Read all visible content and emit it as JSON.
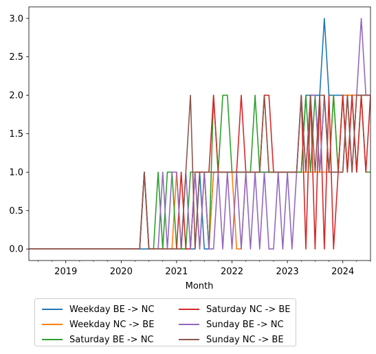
{
  "chart_data": {
    "type": "line",
    "title": "",
    "xlabel": "Month",
    "ylabel": "",
    "xlim": [
      "2018-05",
      "2024-07"
    ],
    "ylim": [
      -0.15,
      3.15
    ],
    "grid": false,
    "legend_position": "below",
    "x_tick_labels": [
      "2019",
      "2020",
      "2021",
      "2022",
      "2023",
      "2024"
    ],
    "y_tick_labels": [
      "0.0",
      "0.5",
      "1.0",
      "1.5",
      "2.0",
      "2.5",
      "3.0"
    ],
    "series": [
      {
        "name": "Weekday BE -> NC",
        "color": "#1f77b4",
        "points": [
          [
            "2018-05",
            0
          ],
          [
            "2021-05",
            0
          ],
          [
            "2021-06",
            1
          ],
          [
            "2021-07",
            0
          ],
          [
            "2021-08",
            0
          ],
          [
            "2021-09",
            1
          ],
          [
            "2022-01",
            1
          ],
          [
            "2023-04",
            1
          ],
          [
            "2023-05",
            2
          ],
          [
            "2023-08",
            2
          ],
          [
            "2023-09",
            3
          ],
          [
            "2023-10",
            2
          ],
          [
            "2024-07",
            2
          ]
        ]
      },
      {
        "name": "Weekday NC -> BE",
        "color": "#ff7f0e",
        "points": [
          [
            "2018-05",
            0
          ],
          [
            "2020-05",
            0
          ],
          [
            "2020-06",
            1
          ],
          [
            "2020-07",
            0
          ],
          [
            "2020-12",
            0
          ],
          [
            "2021-01",
            1
          ],
          [
            "2021-02",
            0
          ],
          [
            "2021-04",
            0
          ],
          [
            "2021-05",
            1
          ],
          [
            "2021-06",
            0
          ],
          [
            "2021-07",
            1
          ],
          [
            "2021-08",
            0
          ],
          [
            "2021-09",
            1
          ],
          [
            "2022-01",
            1
          ],
          [
            "2022-02",
            0
          ],
          [
            "2022-03",
            0
          ],
          [
            "2022-04",
            1
          ],
          [
            "2022-07",
            1
          ],
          [
            "2022-08",
            2
          ],
          [
            "2022-09",
            1
          ],
          [
            "2023-10",
            1
          ],
          [
            "2023-11",
            2
          ],
          [
            "2023-12",
            1
          ],
          [
            "2024-01",
            2
          ],
          [
            "2024-07",
            2
          ]
        ]
      },
      {
        "name": "Saturday BE -> NC",
        "color": "#2ca02c",
        "points": [
          [
            "2018-05",
            0
          ],
          [
            "2020-05",
            0
          ],
          [
            "2020-06",
            1
          ],
          [
            "2020-07",
            0
          ],
          [
            "2020-08",
            0
          ],
          [
            "2020-09",
            1
          ],
          [
            "2020-10",
            0
          ],
          [
            "2020-11",
            1
          ],
          [
            "2020-12",
            1
          ],
          [
            "2021-01",
            0
          ],
          [
            "2021-03",
            0
          ],
          [
            "2021-04",
            1
          ],
          [
            "2021-07",
            1
          ],
          [
            "2021-08",
            0
          ],
          [
            "2021-09",
            2
          ],
          [
            "2021-10",
            1
          ],
          [
            "2021-11",
            2
          ],
          [
            "2021-12",
            2
          ],
          [
            "2022-01",
            1
          ],
          [
            "2022-05",
            1
          ],
          [
            "2022-06",
            2
          ],
          [
            "2022-07",
            1
          ],
          [
            "2023-04",
            1
          ],
          [
            "2023-05",
            2
          ],
          [
            "2023-06",
            1
          ],
          [
            "2023-07",
            2
          ],
          [
            "2023-08",
            1
          ],
          [
            "2023-09",
            2
          ],
          [
            "2023-10",
            1
          ],
          [
            "2023-11",
            2
          ],
          [
            "2023-12",
            1
          ],
          [
            "2024-01",
            2
          ],
          [
            "2024-02",
            1
          ],
          [
            "2024-03",
            2
          ],
          [
            "2024-04",
            1
          ],
          [
            "2024-05",
            2
          ],
          [
            "2024-06",
            1
          ],
          [
            "2024-07",
            1
          ]
        ]
      },
      {
        "name": "Saturday NC -> BE",
        "color": "#d62728",
        "points": [
          [
            "2018-05",
            0
          ],
          [
            "2020-05",
            0
          ],
          [
            "2020-06",
            1
          ],
          [
            "2020-07",
            0
          ],
          [
            "2021-01",
            0
          ],
          [
            "2021-02",
            1
          ],
          [
            "2021-03",
            0
          ],
          [
            "2021-04",
            0
          ],
          [
            "2021-05",
            1
          ],
          [
            "2021-08",
            1
          ],
          [
            "2021-09",
            2
          ],
          [
            "2021-10",
            1
          ],
          [
            "2022-02",
            1
          ],
          [
            "2022-03",
            2
          ],
          [
            "2022-04",
            1
          ],
          [
            "2022-07",
            1
          ],
          [
            "2022-08",
            2
          ],
          [
            "2022-09",
            2
          ],
          [
            "2022-10",
            1
          ],
          [
            "2023-03",
            1
          ],
          [
            "2023-04",
            2
          ],
          [
            "2023-05",
            0
          ],
          [
            "2023-06",
            2
          ],
          [
            "2023-07",
            0
          ],
          [
            "2023-08",
            2
          ],
          [
            "2023-09",
            0
          ],
          [
            "2023-10",
            2
          ],
          [
            "2023-11",
            0
          ],
          [
            "2023-12",
            1
          ],
          [
            "2024-01",
            2
          ],
          [
            "2024-02",
            1
          ],
          [
            "2024-03",
            2
          ],
          [
            "2024-04",
            1
          ],
          [
            "2024-05",
            2
          ],
          [
            "2024-06",
            1
          ],
          [
            "2024-07",
            2
          ]
        ]
      },
      {
        "name": "Sunday BE -> NC",
        "color": "#9467bd",
        "points": [
          [
            "2018-05",
            0
          ],
          [
            "2020-05",
            0
          ],
          [
            "2020-06",
            1
          ],
          [
            "2020-07",
            0
          ],
          [
            "2020-09",
            0
          ],
          [
            "2020-10",
            1
          ],
          [
            "2020-11",
            0
          ],
          [
            "2020-12",
            1
          ],
          [
            "2021-01",
            1
          ],
          [
            "2021-02",
            0
          ],
          [
            "2021-03",
            1
          ],
          [
            "2021-04",
            0
          ],
          [
            "2021-05",
            1
          ],
          [
            "2021-06",
            0
          ],
          [
            "2021-07",
            1
          ],
          [
            "2021-08",
            0
          ],
          [
            "2021-09",
            0
          ],
          [
            "2021-10",
            1
          ],
          [
            "2021-11",
            0
          ],
          [
            "2021-12",
            1
          ],
          [
            "2022-01",
            0
          ],
          [
            "2022-02",
            1
          ],
          [
            "2022-03",
            0
          ],
          [
            "2022-04",
            1
          ],
          [
            "2022-05",
            0
          ],
          [
            "2022-06",
            1
          ],
          [
            "2022-07",
            0
          ],
          [
            "2022-08",
            1
          ],
          [
            "2022-09",
            0
          ],
          [
            "2022-10",
            0
          ],
          [
            "2022-11",
            1
          ],
          [
            "2022-12",
            0
          ],
          [
            "2023-01",
            1
          ],
          [
            "2023-02",
            0
          ],
          [
            "2023-03",
            1
          ],
          [
            "2023-04",
            2
          ],
          [
            "2023-05",
            1
          ],
          [
            "2023-06",
            2
          ],
          [
            "2023-07",
            2
          ],
          [
            "2023-08",
            1
          ],
          [
            "2023-09",
            2
          ],
          [
            "2023-10",
            1
          ],
          [
            "2024-01",
            1
          ],
          [
            "2024-02",
            2
          ],
          [
            "2024-03",
            1
          ],
          [
            "2024-04",
            2
          ],
          [
            "2024-05",
            3
          ],
          [
            "2024-06",
            2
          ],
          [
            "2024-07",
            2
          ]
        ]
      },
      {
        "name": "Sunday NC -> BE",
        "color": "#8c564b",
        "points": [
          [
            "2018-05",
            0
          ],
          [
            "2020-05",
            0
          ],
          [
            "2020-06",
            1
          ],
          [
            "2020-07",
            0
          ],
          [
            "2021-02",
            0
          ],
          [
            "2021-03",
            1
          ],
          [
            "2021-04",
            2
          ],
          [
            "2021-05",
            0
          ],
          [
            "2021-06",
            1
          ],
          [
            "2022-07",
            1
          ],
          [
            "2022-08",
            2
          ],
          [
            "2022-09",
            1
          ],
          [
            "2023-03",
            1
          ],
          [
            "2023-04",
            2
          ],
          [
            "2023-05",
            1
          ],
          [
            "2023-06",
            2
          ],
          [
            "2023-07",
            1
          ],
          [
            "2023-08",
            2
          ],
          [
            "2023-09",
            2
          ],
          [
            "2023-10",
            1
          ],
          [
            "2024-01",
            1
          ],
          [
            "2024-02",
            2
          ],
          [
            "2024-03",
            1
          ],
          [
            "2024-04",
            2
          ],
          [
            "2024-07",
            2
          ]
        ]
      }
    ]
  }
}
